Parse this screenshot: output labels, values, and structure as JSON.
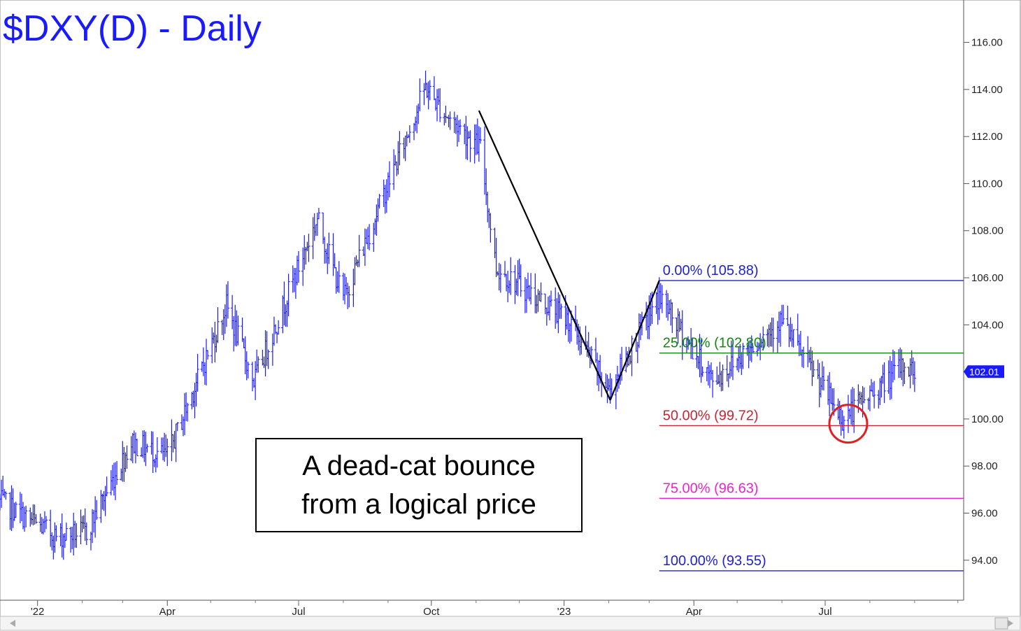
{
  "chart_data": {
    "type": "bar",
    "title": "$DXY(D) - Daily",
    "subtype": "OHLC daily price bars",
    "y_axis": {
      "ticks": [
        "94.00",
        "96.00",
        "98.00",
        "100.00",
        "102.00",
        "104.00",
        "106.00",
        "108.00",
        "110.00",
        "112.00",
        "114.00",
        "116.00"
      ],
      "ylim": [
        92.3,
        117.8
      ],
      "position": "right"
    },
    "x_axis": {
      "ticks": [
        {
          "label": "'22",
          "date": "2022-01-01"
        },
        {
          "label": "Apr",
          "date": "2022-04-01"
        },
        {
          "label": "Jul",
          "date": "2022-07-01"
        },
        {
          "label": "Oct",
          "date": "2022-10-01"
        },
        {
          "label": "'23",
          "date": "2023-01-01"
        },
        {
          "label": "Apr",
          "date": "2023-04-01"
        },
        {
          "label": "Jul",
          "date": "2023-07-01"
        }
      ],
      "range": [
        "2021-12-06",
        "2023-10-05"
      ]
    },
    "price_path": [
      {
        "date": "2021-12-06",
        "value": 96.5
      },
      {
        "date": "2022-01-14",
        "value": 95.0
      },
      {
        "date": "2022-02-04",
        "value": 95.2
      },
      {
        "date": "2022-03-07",
        "value": 99.0
      },
      {
        "date": "2022-04-01",
        "value": 98.4
      },
      {
        "date": "2022-05-12",
        "value": 104.8
      },
      {
        "date": "2022-05-31",
        "value": 101.6
      },
      {
        "date": "2022-07-14",
        "value": 108.5
      },
      {
        "date": "2022-08-01",
        "value": 105.1
      },
      {
        "date": "2022-09-27",
        "value": 114.1
      },
      {
        "date": "2022-10-10",
        "value": 113.0
      },
      {
        "date": "2022-11-04",
        "value": 111.5
      },
      {
        "date": "2022-11-15",
        "value": 106.4
      },
      {
        "date": "2023-01-04",
        "value": 104.2
      },
      {
        "date": "2023-02-01",
        "value": 101.2
      },
      {
        "date": "2023-03-08",
        "value": 105.2
      },
      {
        "date": "2023-04-14",
        "value": 101.6
      },
      {
        "date": "2023-05-31",
        "value": 104.2
      },
      {
        "date": "2023-07-13",
        "value": 100.0
      },
      {
        "date": "2023-08-25",
        "value": 102.3
      },
      {
        "date": "2023-09-01",
        "value": 102.0
      }
    ],
    "swing_lines": [
      {
        "from": {
          "date": "2022-11-03",
          "value": 113.1
        },
        "to": {
          "date": "2023-02-02",
          "value": 100.8
        }
      },
      {
        "from": {
          "date": "2023-02-02",
          "value": 100.8
        },
        "to": {
          "date": "2023-03-08",
          "value": 105.88
        }
      }
    ],
    "fib_levels": [
      {
        "label": "0.00% (105.88)",
        "value": 105.88,
        "color": "#2222cc"
      },
      {
        "label": "25.00% (102.80)",
        "value": 102.8,
        "color": "#118811"
      },
      {
        "label": "50.00% (99.72)",
        "value": 99.72,
        "color": "#cc2233"
      },
      {
        "label": "75.00% (96.63)",
        "value": 96.63,
        "color": "#ee22cc"
      },
      {
        "label": "100.00% (93.55)",
        "value": 93.55,
        "color": "#2222cc"
      }
    ],
    "fib_start_date": "2023-03-08",
    "last_price": {
      "label": "102.01",
      "value": 102.01
    },
    "highlight_circle": {
      "date": "2023-07-17",
      "value": 99.8,
      "color": "#e02020"
    },
    "annotation": {
      "lines": [
        "A dead-cat bounce",
        "from a logical price"
      ]
    },
    "bar_color": "#1a1aff",
    "grid": false,
    "legend": "none"
  }
}
